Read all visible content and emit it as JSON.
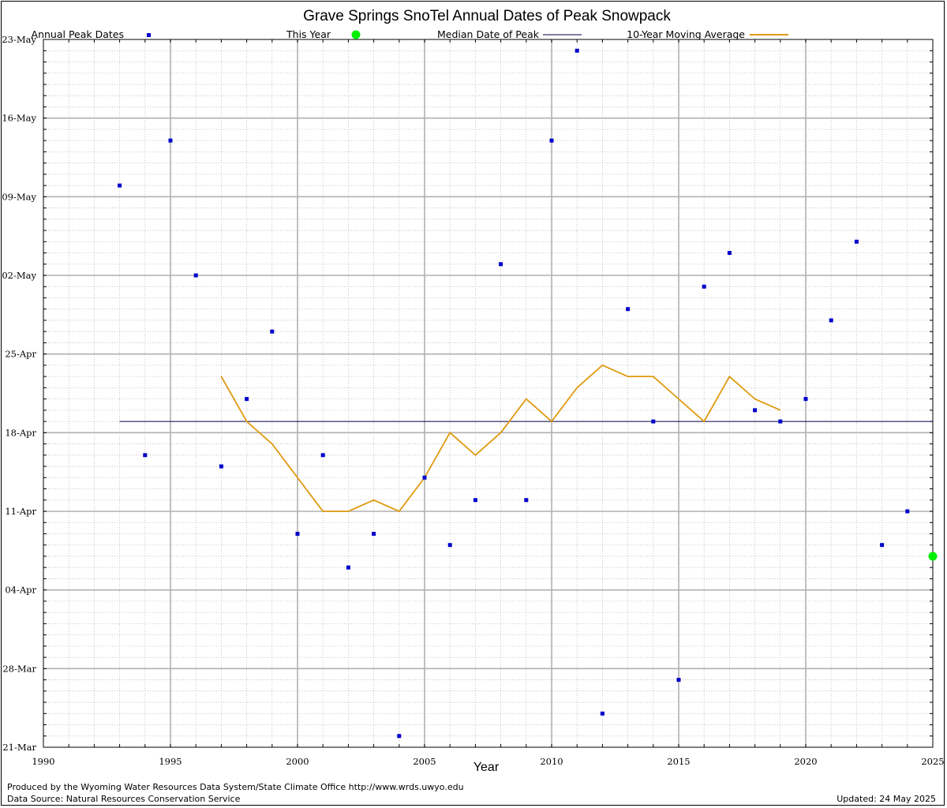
{
  "chart_data": {
    "type": "scatter",
    "title": "Grave Springs SnoTel Annual Dates of Peak Snowpack",
    "xlabel": "Year",
    "ylabel": "",
    "xlim": [
      1990,
      2025
    ],
    "x_ticks": [
      1990,
      1995,
      2000,
      2005,
      2010,
      2015,
      2020,
      2025
    ],
    "ylim": [
      "21-Mar",
      "23-May"
    ],
    "y_ticks": [
      "21-Mar",
      "28-Mar",
      "04-Apr",
      "11-Apr",
      "18-Apr",
      "25-Apr",
      "02-May",
      "09-May",
      "16-May",
      "23-May"
    ],
    "grid": true,
    "legend_position": "top",
    "series": [
      {
        "name": "Annual Peak Dates",
        "style": "points",
        "color": "#0000cc",
        "points": [
          {
            "x": 1993,
            "y": "10-May"
          },
          {
            "x": 1994,
            "y": "16-Apr"
          },
          {
            "x": 1995,
            "y": "14-May"
          },
          {
            "x": 1996,
            "y": "02-May"
          },
          {
            "x": 1997,
            "y": "15-Apr"
          },
          {
            "x": 1998,
            "y": "21-Apr"
          },
          {
            "x": 1999,
            "y": "27-Apr"
          },
          {
            "x": 2000,
            "y": "09-Apr"
          },
          {
            "x": 2001,
            "y": "16-Apr"
          },
          {
            "x": 2002,
            "y": "06-Apr"
          },
          {
            "x": 2003,
            "y": "09-Apr"
          },
          {
            "x": 2004,
            "y": "22-Mar"
          },
          {
            "x": 2005,
            "y": "14-Apr"
          },
          {
            "x": 2006,
            "y": "08-Apr"
          },
          {
            "x": 2007,
            "y": "12-Apr"
          },
          {
            "x": 2008,
            "y": "03-May"
          },
          {
            "x": 2009,
            "y": "12-Apr"
          },
          {
            "x": 2010,
            "y": "14-May"
          },
          {
            "x": 2011,
            "y": "22-May"
          },
          {
            "x": 2012,
            "y": "24-Mar"
          },
          {
            "x": 2013,
            "y": "29-Apr"
          },
          {
            "x": 2014,
            "y": "19-Apr"
          },
          {
            "x": 2015,
            "y": "27-Mar"
          },
          {
            "x": 2016,
            "y": "01-May"
          },
          {
            "x": 2017,
            "y": "04-May"
          },
          {
            "x": 2018,
            "y": "20-Apr"
          },
          {
            "x": 2019,
            "y": "19-Apr"
          },
          {
            "x": 2020,
            "y": "21-Apr"
          },
          {
            "x": 2021,
            "y": "28-Apr"
          },
          {
            "x": 2022,
            "y": "05-May"
          },
          {
            "x": 2023,
            "y": "08-Apr"
          },
          {
            "x": 2024,
            "y": "11-Apr"
          }
        ]
      },
      {
        "name": "This Year",
        "style": "points",
        "color": "#00ee00",
        "points": [
          {
            "x": 2025,
            "y": "07-Apr"
          }
        ]
      },
      {
        "name": "Median Date of Peak",
        "style": "line",
        "color": "#000044",
        "points": [
          {
            "x": 1993,
            "y": "19-Apr"
          },
          {
            "x": 2025,
            "y": "19-Apr"
          }
        ]
      },
      {
        "name": "10-Year Moving Average",
        "style": "line",
        "color": "#e09a10",
        "points": [
          {
            "x": 1997,
            "y": "23-Apr"
          },
          {
            "x": 1998,
            "y": "19-Apr"
          },
          {
            "x": 1999,
            "y": "17-Apr"
          },
          {
            "x": 2000,
            "y": "14-Apr"
          },
          {
            "x": 2001,
            "y": "11-Apr"
          },
          {
            "x": 2002,
            "y": "11-Apr"
          },
          {
            "x": 2003,
            "y": "12-Apr"
          },
          {
            "x": 2004,
            "y": "11-Apr"
          },
          {
            "x": 2005,
            "y": "14-Apr"
          },
          {
            "x": 2006,
            "y": "18-Apr"
          },
          {
            "x": 2007,
            "y": "16-Apr"
          },
          {
            "x": 2008,
            "y": "18-Apr"
          },
          {
            "x": 2009,
            "y": "21-Apr"
          },
          {
            "x": 2010,
            "y": "19-Apr"
          },
          {
            "x": 2011,
            "y": "22-Apr"
          },
          {
            "x": 2012,
            "y": "24-Apr"
          },
          {
            "x": 2013,
            "y": "23-Apr"
          },
          {
            "x": 2014,
            "y": "23-Apr"
          },
          {
            "x": 2015,
            "y": "21-Apr"
          },
          {
            "x": 2016,
            "y": "19-Apr"
          },
          {
            "x": 2017,
            "y": "23-Apr"
          },
          {
            "x": 2018,
            "y": "21-Apr"
          },
          {
            "x": 2019,
            "y": "20-Apr"
          }
        ]
      }
    ]
  },
  "footer": {
    "credit": "Produced by the Wyoming Water Resources Data System/State Climate Office http://www.wrds.uwyo.edu",
    "source": "Data Source: Natural Resources Conservation Service",
    "updated": "Updated: 24 May 2025"
  }
}
